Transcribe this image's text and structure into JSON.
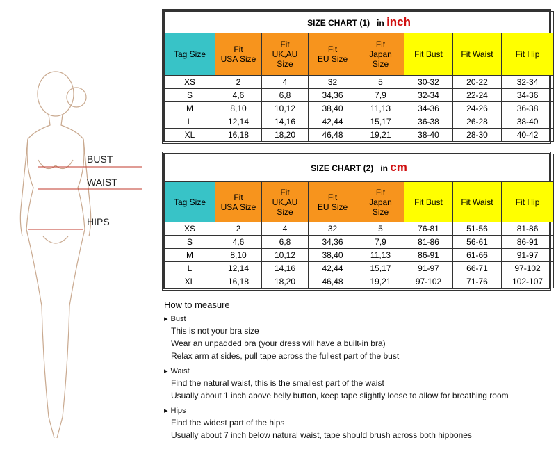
{
  "figure": {
    "labels": [
      "BUST",
      "WAIST",
      "HIPS"
    ]
  },
  "tables": [
    {
      "title": "SIZE CHART (1)",
      "unit_label": "in",
      "unit": "inch",
      "header": [
        "Tag Size",
        "Fit\nUSA Size",
        "Fit\nUK,AU\nSize",
        "Fit\nEU Size",
        "Fit\nJapan\nSize",
        "Fit Bust",
        "Fit Waist",
        "Fit Hip"
      ],
      "rows": [
        [
          "XS",
          "2",
          "4",
          "32",
          "5",
          "30-32",
          "20-22",
          "32-34"
        ],
        [
          "S",
          "4,6",
          "6,8",
          "34,36",
          "7,9",
          "32-34",
          "22-24",
          "34-36"
        ],
        [
          "M",
          "8,10",
          "10,12",
          "38,40",
          "11,13",
          "34-36",
          "24-26",
          "36-38"
        ],
        [
          "L",
          "12,14",
          "14,16",
          "42,44",
          "15,17",
          "36-38",
          "26-28",
          "38-40"
        ],
        [
          "XL",
          "16,18",
          "18,20",
          "46,48",
          "19,21",
          "38-40",
          "28-30",
          "40-42"
        ]
      ]
    },
    {
      "title": "SIZE CHART (2)",
      "unit_label": "in",
      "unit": "cm",
      "header": [
        "Tag Size",
        "Fit\nUSA Size",
        "Fit\nUK,AU\nSize",
        "Fit\nEU Size",
        "Fit\nJapan\nSize",
        "Fit Bust",
        "Fit Waist",
        "Fit Hip"
      ],
      "rows": [
        [
          "XS",
          "2",
          "4",
          "32",
          "5",
          "76-81",
          "51-56",
          "81-86"
        ],
        [
          "S",
          "4,6",
          "6,8",
          "34,36",
          "7,9",
          "81-86",
          "56-61",
          "86-91"
        ],
        [
          "M",
          "8,10",
          "10,12",
          "38,40",
          "11,13",
          "86-91",
          "61-66",
          "91-97"
        ],
        [
          "L",
          "12,14",
          "14,16",
          "42,44",
          "15,17",
          "91-97",
          "66-71",
          "97-102"
        ],
        [
          "XL",
          "16,18",
          "18,20",
          "46,48",
          "19,21",
          "97-102",
          "71-76",
          "102-107"
        ]
      ]
    }
  ],
  "measure": {
    "title": "How to measure",
    "sections": [
      {
        "heading": "Bust",
        "lines": [
          "This is not your bra size",
          "Wear an unpadded bra (your dress will have a built-in bra)",
          "Relax arm at sides, pull tape across the fullest part of the bust"
        ]
      },
      {
        "heading": "Waist",
        "lines": [
          "Find the natural waist, this is the smallest part of the waist",
          "Usually about 1 inch above belly button, keep tape slightly loose to allow for breathing room"
        ]
      },
      {
        "heading": "Hips",
        "lines": [
          "Find the widest part of the hips",
          "Usually about 7 inch below natural waist, tape should brush across both hipbones"
        ]
      }
    ]
  }
}
